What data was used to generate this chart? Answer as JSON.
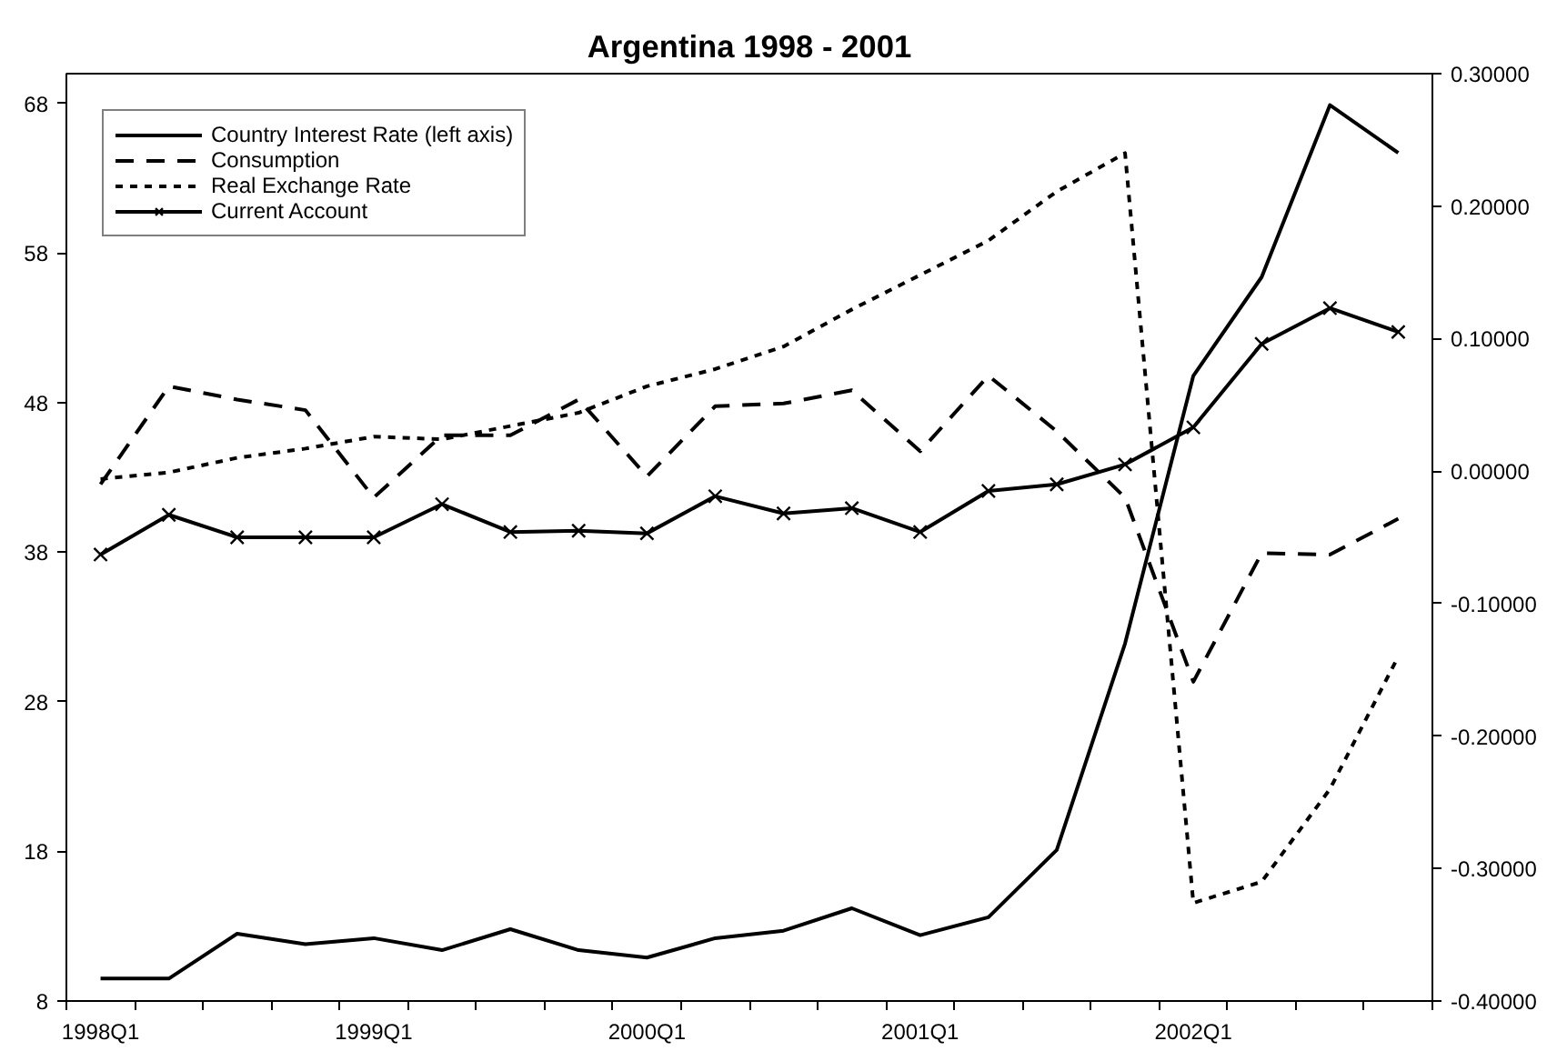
{
  "chart_data": {
    "type": "line",
    "title": "Argentina 1998 - 2001",
    "categories": [
      "1998Q1",
      null,
      null,
      null,
      "1999Q1",
      null,
      null,
      null,
      "2000Q1",
      null,
      null,
      null,
      "2001Q1",
      null,
      null,
      null,
      "2002Q1",
      null,
      null,
      null
    ],
    "series": [
      {
        "name": "Country Interest Rate (left axis)",
        "color": "#000000",
        "line_style": "solid",
        "marker": "none",
        "values": [
          9.5,
          9.5,
          12.5,
          11.8,
          12.2,
          11.4,
          12.8,
          11.4,
          10.9,
          12.2,
          12.7,
          14.2,
          12.4,
          13.6,
          18.1,
          31.9,
          49.8,
          56.4,
          67.9,
          64.7
        ]
      },
      {
        "name": "Consumption",
        "color": "#000000",
        "line_style": "dashed",
        "marker": "none",
        "axis": "y2",
        "values": [
          -0.01,
          0.064,
          0.054,
          0.046,
          -0.02,
          0.027,
          0.027,
          0.054,
          -0.004,
          0.049,
          0.051,
          0.061,
          0.015,
          0.072,
          0.03,
          -0.02,
          -0.159,
          -0.062,
          -0.063,
          -0.036
        ]
      },
      {
        "name": "Real Exchange Rate",
        "color": "#000000",
        "line_style": "dotted",
        "marker": "none",
        "axis": "y2",
        "values": [
          -0.006,
          -0.001,
          0.01,
          0.017,
          0.026,
          0.024,
          0.034,
          0.044,
          0.064,
          0.077,
          0.094,
          0.122,
          0.148,
          0.174,
          0.211,
          0.24,
          -0.326,
          -0.31,
          -0.24,
          -0.14
        ]
      },
      {
        "name": "Current Account",
        "color": "#000000",
        "line_style": "solid",
        "marker": "cross",
        "axis": "y2",
        "values": [
          -0.063,
          -0.033,
          -0.05,
          -0.05,
          -0.05,
          -0.025,
          -0.046,
          -0.045,
          -0.047,
          -0.019,
          -0.032,
          -0.028,
          -0.046,
          -0.015,
          -0.01,
          0.005,
          0.033,
          0.096,
          0.123,
          0.105
        ]
      }
    ],
    "ylim": [
      8,
      70
    ],
    "yticks": [
      8,
      18,
      28,
      38,
      48,
      58,
      68
    ],
    "y2lim": [
      -0.4,
      0.3
    ],
    "y2ticks": [
      {
        "value": -0.4,
        "label": "-0.40000"
      },
      {
        "value": -0.3,
        "label": "-0.30000"
      },
      {
        "value": -0.2,
        "label": "-0.20000"
      },
      {
        "value": -0.1,
        "label": "-0.10000"
      },
      {
        "value": 0.0,
        "label": "0.00000"
      },
      {
        "value": 0.1,
        "label": "0.10000"
      },
      {
        "value": 0.2,
        "label": "0.20000"
      },
      {
        "value": 0.3,
        "label": "0.30000"
      }
    ],
    "grid": false,
    "legend": "top left"
  }
}
